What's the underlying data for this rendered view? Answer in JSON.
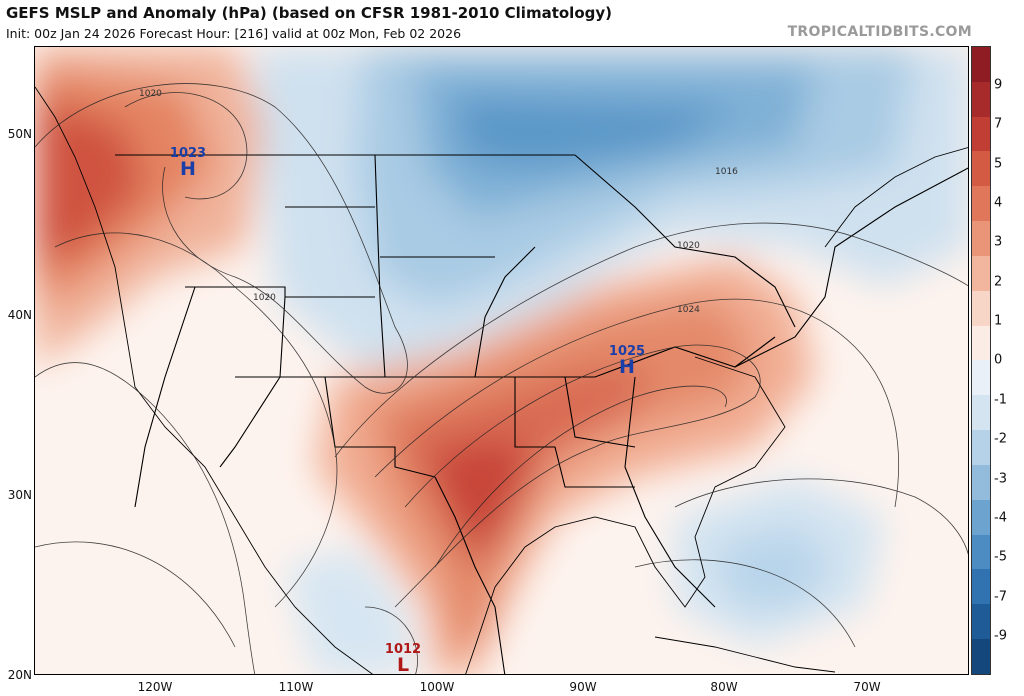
{
  "header": {
    "title": "GEFS MSLP and Anomaly (hPa) (based on CFSR 1981-2010 Climatology)",
    "subtitle": "Init: 00z Jan 24 2026   Forecast Hour: [216]   valid at 00z Mon, Feb 02 2026",
    "credit": "TROPICALTIDBITS.COM"
  },
  "axes": {
    "lat_labels": [
      "50N",
      "40N",
      "30N",
      "20N"
    ],
    "lon_labels": [
      "120W",
      "110W",
      "100W",
      "90W",
      "80W",
      "70W"
    ]
  },
  "colorbar": {
    "labels": [
      "9",
      "7",
      "5",
      "4",
      "3",
      "2",
      "1",
      "0",
      "-1",
      "-2",
      "-3",
      "-4",
      "-5",
      "-7",
      "-9"
    ],
    "colors": [
      "#8e1c22",
      "#a82b2c",
      "#c13e34",
      "#d35a43",
      "#e0775a",
      "#ea9578",
      "#f2b59d",
      "#f8d6c7",
      "#fbede6",
      "#e9f0f7",
      "#d4e4f0",
      "#b6d2e8",
      "#93bcdc",
      "#6da3cf",
      "#4d8cc2",
      "#3173b1",
      "#1f5b97",
      "#14477c"
    ]
  },
  "pressure_centers": [
    {
      "value": "1023",
      "letter": "H",
      "color": "#1a3fa8"
    },
    {
      "value": "1025",
      "letter": "H",
      "color": "#1a3fa8"
    },
    {
      "value": "1012",
      "letter": "L",
      "color": "#b01818"
    }
  ],
  "isobar_labels": [
    "1020",
    "1020",
    "1016",
    "1020",
    "1024"
  ]
}
